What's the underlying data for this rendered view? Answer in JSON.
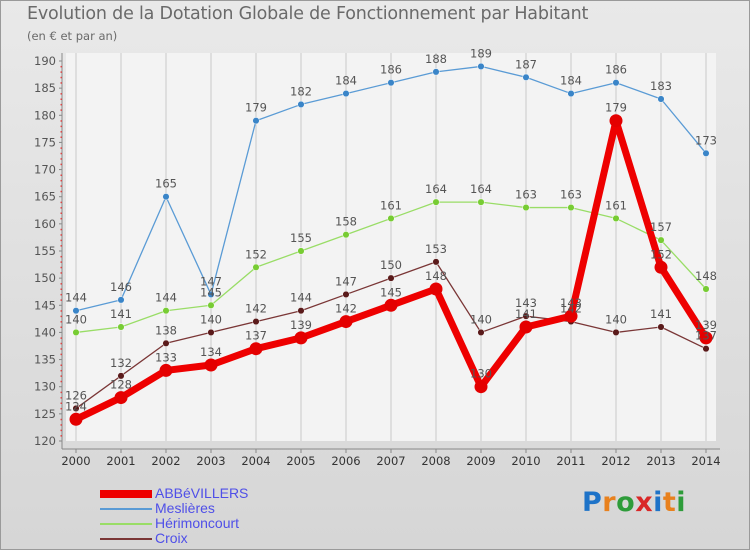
{
  "header": {
    "title": "Evolution de la Dotation Globale de Fonctionnement par Habitant",
    "subtitle": "(en € et par an)"
  },
  "logo": {
    "text": "Proxiti",
    "colors": [
      "#1e73c8",
      "#e8811e",
      "#2e9c3a",
      "#d92727",
      "#1e73c8",
      "#e8811e",
      "#2e9c3a"
    ]
  },
  "chart_data": {
    "type": "line",
    "title": "Evolution de la Dotation Globale de Fonctionnement par Habitant",
    "subtitle": "(en € et par an)",
    "xlabel": "",
    "ylabel": "",
    "x": [
      "2000",
      "2001",
      "2002",
      "2003",
      "2004",
      "2005",
      "2006",
      "2007",
      "2008",
      "2009",
      "2010",
      "2011",
      "2012",
      "2013",
      "2014"
    ],
    "ylim": [
      120,
      190
    ],
    "yticks": [
      120,
      125,
      130,
      135,
      140,
      145,
      150,
      155,
      160,
      165,
      170,
      175,
      180,
      185,
      190
    ],
    "grid": "vertical",
    "legend_position": "bottom-left",
    "series": [
      {
        "name": "ABBéVILLERS",
        "color": "#ee0000",
        "marker_color": "#e40000",
        "label_color": "#555555",
        "bold": true,
        "values": [
          124,
          128,
          133,
          134,
          137,
          139,
          142,
          145,
          148,
          130,
          141,
          143,
          179,
          152,
          139
        ],
        "labels": [
          "124",
          "128",
          "133",
          "134",
          "137",
          "139",
          "142",
          "145",
          "148",
          "130",
          "141",
          "143",
          "179",
          "152",
          "139"
        ]
      },
      {
        "name": "Meslières",
        "color": "#5a9bd5",
        "marker_color": "#3a85c8",
        "label_color": "#555555",
        "bold": false,
        "values": [
          144,
          146,
          165,
          147,
          179,
          182,
          184,
          186,
          188,
          189,
          187,
          184,
          186,
          183,
          173
        ],
        "labels": [
          "144",
          "146",
          "165",
          "147",
          "179",
          "182",
          "184",
          "186",
          "188",
          "189",
          "187",
          "184",
          "186",
          "183",
          "173"
        ]
      },
      {
        "name": "Hérimoncourt",
        "color": "#99dd66",
        "marker_color": "#77cc33",
        "label_color": "#555555",
        "bold": false,
        "values": [
          140,
          141,
          144,
          145,
          152,
          155,
          158,
          161,
          164,
          164,
          163,
          163,
          161,
          157,
          148
        ],
        "labels": [
          "140",
          "141",
          "144",
          "145",
          "152",
          "155",
          "158",
          "161",
          "164",
          "164",
          "163",
          "163",
          "161",
          "157",
          "148"
        ]
      },
      {
        "name": "Croix",
        "color": "#7a3636",
        "marker_color": "#5a1a1a",
        "label_color": "#555555",
        "bold": false,
        "values": [
          126,
          132,
          138,
          140,
          142,
          144,
          147,
          150,
          153,
          140,
          143,
          142,
          140,
          141,
          137
        ],
        "labels": [
          "126",
          "132",
          "138",
          "140",
          "142",
          "144",
          "147",
          "150",
          "153",
          "140",
          "143",
          "142",
          "140",
          "141",
          "137"
        ]
      }
    ]
  }
}
